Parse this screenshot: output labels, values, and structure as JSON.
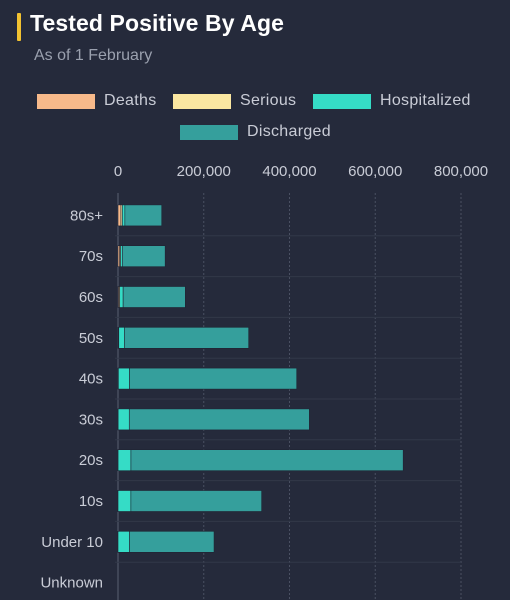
{
  "header": {
    "title": "Tested Positive By Age",
    "subtitle": "As of 1 February",
    "accent_color": "#f2c231"
  },
  "chart_data": {
    "type": "bar",
    "orientation": "horizontal",
    "stacked": true,
    "xlim": [
      0,
      800000
    ],
    "x_ticks": [
      0,
      200000,
      400000,
      600000,
      800000
    ],
    "x_tick_labels": [
      "0",
      "200,000",
      "400,000",
      "600,000",
      "800,000"
    ],
    "categories": [
      "80s+",
      "70s",
      "60s",
      "50s",
      "40s",
      "30s",
      "20s",
      "10s",
      "Under 10",
      "Unknown"
    ],
    "series": [
      {
        "name": "Deaths",
        "color": "#f7b98a",
        "values": [
          7000,
          4000,
          2000,
          800,
          300,
          100,
          50,
          10,
          5,
          0
        ]
      },
      {
        "name": "Serious",
        "color": "#fbe7a1",
        "values": [
          3000,
          2000,
          2000,
          1000,
          500,
          200,
          100,
          20,
          10,
          0
        ]
      },
      {
        "name": "Hospitalized",
        "color": "#35dcc6",
        "values": [
          6000,
          4000,
          8000,
          13000,
          26000,
          26000,
          30000,
          30000,
          27000,
          0
        ]
      },
      {
        "name": "Discharged",
        "color": "#359f9c",
        "values": [
          86000,
          100000,
          145000,
          290000,
          390000,
          420000,
          635000,
          305000,
          197000,
          0
        ]
      }
    ],
    "legend_position": "top",
    "grid": true
  }
}
